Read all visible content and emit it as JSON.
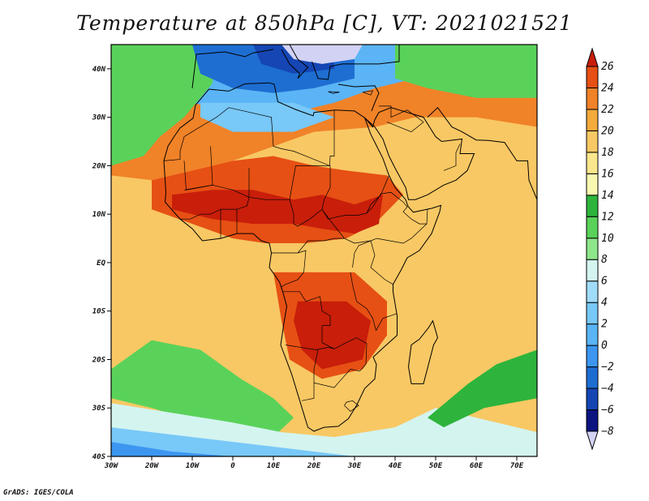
{
  "title": "Temperature at 850hPa [C], VT: 2021021521",
  "credit": "GrADS: IGES/COLA",
  "map": {
    "lon_range": [
      -30,
      75
    ],
    "lat_range": [
      -40,
      45
    ],
    "lat_ticks": [
      {
        "value": 40,
        "label": "40N"
      },
      {
        "value": 30,
        "label": "30N"
      },
      {
        "value": 20,
        "label": "20N"
      },
      {
        "value": 10,
        "label": "10N"
      },
      {
        "value": 0,
        "label": "EQ"
      },
      {
        "value": -10,
        "label": "10S"
      },
      {
        "value": -20,
        "label": "20S"
      },
      {
        "value": -30,
        "label": "30S"
      },
      {
        "value": -40,
        "label": "40S"
      }
    ],
    "lon_ticks": [
      {
        "value": -30,
        "label": "30W"
      },
      {
        "value": -20,
        "label": "20W"
      },
      {
        "value": -10,
        "label": "10W"
      },
      {
        "value": 0,
        "label": "0"
      },
      {
        "value": 10,
        "label": "10E"
      },
      {
        "value": 20,
        "label": "20E"
      },
      {
        "value": 30,
        "label": "30E"
      },
      {
        "value": 40,
        "label": "40E"
      },
      {
        "value": 50,
        "label": "50E"
      },
      {
        "value": 60,
        "label": "60E"
      },
      {
        "value": 70,
        "label": "70E"
      }
    ]
  },
  "colorbar": {
    "levels": [
      -8,
      -6,
      -4,
      -2,
      0,
      2,
      4,
      6,
      8,
      10,
      12,
      14,
      16,
      18,
      20,
      22,
      24,
      26
    ],
    "colors": [
      "#d2d2f5",
      "#0c1480",
      "#1546b4",
      "#1e6ed2",
      "#3c96f0",
      "#5ab4f5",
      "#78c8f8",
      "#a0dcfa",
      "#d4f4f0",
      "#8ee68a",
      "#5ad25a",
      "#2eb43c",
      "#f8f8b0",
      "#fae68c",
      "#f8c864",
      "#f5aa3c",
      "#f08228",
      "#e65014",
      "#c81e0a"
    ]
  }
}
